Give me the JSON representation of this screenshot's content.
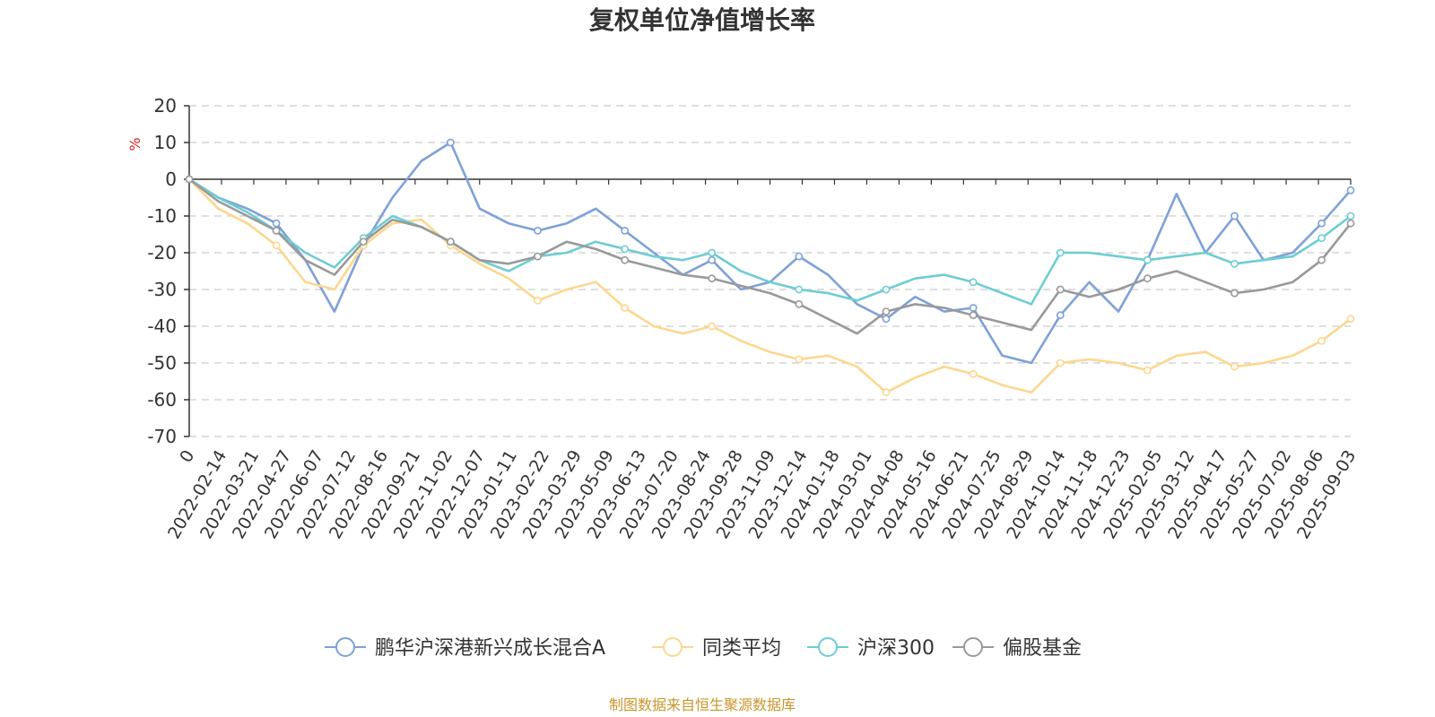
{
  "chart_data": {
    "type": "line",
    "title": "复权单位净值增长率",
    "ylabel": "%",
    "ylim": [
      -70,
      20
    ],
    "yticks": [
      20,
      10,
      0,
      -10,
      -20,
      -30,
      -40,
      -50,
      -60,
      -70
    ],
    "grid": true,
    "legend_position": "bottom",
    "x_tick_labels": [
      "0",
      "2022-02-14",
      "2022-03-21",
      "2022-04-27",
      "2022-06-07",
      "2022-07-12",
      "2022-08-16",
      "2022-09-21",
      "2022-11-02",
      "2022-12-07",
      "2023-01-11",
      "2023-02-22",
      "2023-03-29",
      "2023-05-09",
      "2023-06-13",
      "2023-07-20",
      "2023-08-24",
      "2023-09-28",
      "2023-11-09",
      "2023-12-14",
      "2024-01-18",
      "2024-03-01",
      "2024-04-08",
      "2024-05-16",
      "2024-06-21",
      "2024-07-25",
      "2024-08-29",
      "2024-10-14",
      "2024-11-18",
      "2024-12-23",
      "2025-02-05",
      "2025-03-12",
      "2025-04-17",
      "2025-05-27",
      "2025-07-02",
      "2025-08-06",
      "2025-09-03"
    ],
    "series": [
      {
        "name": "鹏华沪深港新兴成长混合A",
        "color": "#7ea1d8",
        "values": [
          0,
          -5,
          -8,
          -12,
          -22,
          -36,
          -18,
          -5,
          5,
          10,
          -8,
          -12,
          -14,
          -12,
          -8,
          -14,
          -20,
          -26,
          -22,
          -30,
          -28,
          -21,
          -26,
          -34,
          -38,
          -32,
          -36,
          -35,
          -48,
          -50,
          -37,
          -28,
          -36,
          -22,
          -4,
          -20,
          -10,
          -22,
          -20,
          -12,
          -3
        ]
      },
      {
        "name": "同类平均",
        "color": "#fcd78e",
        "values": [
          0,
          -8,
          -12,
          -18,
          -28,
          -30,
          -18,
          -12,
          -11,
          -18,
          -23,
          -27,
          -33,
          -30,
          -28,
          -35,
          -40,
          -42,
          -40,
          -44,
          -47,
          -49,
          -48,
          -51,
          -58,
          -54,
          -51,
          -53,
          -56,
          -58,
          -50,
          -49,
          -50,
          -52,
          -48,
          -47,
          -51,
          -50,
          -48,
          -44,
          -38
        ]
      },
      {
        "name": "沪深300",
        "color": "#6dcdd3",
        "values": [
          0,
          -5,
          -9,
          -14,
          -20,
          -24,
          -16,
          -10,
          -13,
          -17,
          -22,
          -25,
          -21,
          -20,
          -17,
          -19,
          -21,
          -22,
          -20,
          -25,
          -28,
          -30,
          -31,
          -33,
          -30,
          -27,
          -26,
          -28,
          -31,
          -34,
          -20,
          -20,
          -21,
          -22,
          -21,
          -20,
          -23,
          -22,
          -21,
          -16,
          -10
        ]
      },
      {
        "name": "偏股基金",
        "color": "#999999",
        "values": [
          0,
          -6,
          -10,
          -14,
          -22,
          -26,
          -17,
          -11,
          -13,
          -17,
          -22,
          -23,
          -21,
          -17,
          -19,
          -22,
          -24,
          -26,
          -27,
          -29,
          -31,
          -34,
          -38,
          -42,
          -36,
          -34,
          -35,
          -37,
          -39,
          -41,
          -30,
          -32,
          -30,
          -27,
          -25,
          -28,
          -31,
          -30,
          -28,
          -22,
          -12
        ]
      }
    ]
  },
  "source_text": "制图数据来自恒生聚源数据库"
}
